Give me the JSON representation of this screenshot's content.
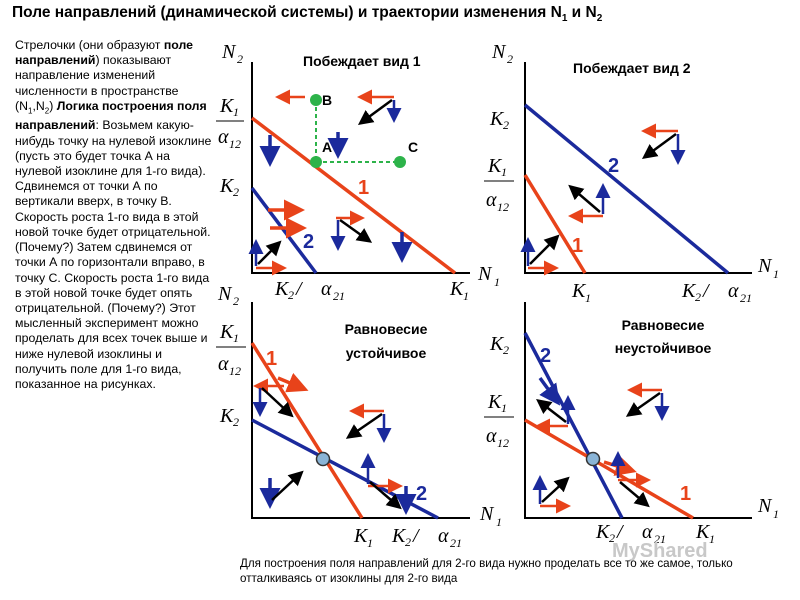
{
  "title": {
    "main": "Поле направлений (динамической системы) и траектории изменения N",
    "sub1": "1",
    "and": " и N",
    "sub2": "2"
  },
  "side": {
    "p1": "Стрелочки (они образуют",
    "p2": "поле направлений",
    "p3": ") показывают направление изменений численности в пространстве (N",
    "p4": "1",
    "p5": ",N",
    "p6": "2",
    "p7": ")",
    "p8": "Логика построения поля направлений",
    "p9": ": Возьмем какую-нибудь точку на нулевой изоклине (пусть это будет точка А на нулевой изоклине для 1-го вида). Сдвинемся от точки А по вертикали вверх, в точку В. Скорость роста 1-го вида в этой новой точке будет отрицательной. (Почему?) Затем сдвинемся от точки А по горизонтали вправо, в точку С. Скорость роста 1-го вида в этой новой точке будет опять отрицательной. (Почему?) Этот мысленный эксперимент можно проделать для всех точек выше и ниже нулевой изоклины и получить поле для 1-го вида, показанное на рисунках."
  },
  "panels": {
    "tl": {
      "title": "Побеждает вид 1"
    },
    "tr": {
      "title": "Побеждает вид 2"
    },
    "bl": {
      "title1": "Равновесие",
      "title2": "устойчивое"
    },
    "br": {
      "title1": "Равновесие",
      "title2": "неустойчивое"
    }
  },
  "labels": {
    "N": "N",
    "n1": "1",
    "n2": "2",
    "K": "K",
    "k1": "1",
    "k2": "2",
    "alpha": "α",
    "a12": "12",
    "a21": "21",
    "slash": " / ",
    "one": "1",
    "two": "2",
    "A": "А",
    "B": "В",
    "C": "С"
  },
  "footer": "Для построения поля направлений для 2-го вида нужно проделать все то же самое, только отталкиваясь от изоклины для 2-го вида",
  "watermark": "MyShared",
  "colors": {
    "red": "#e8431a",
    "blue": "#1b2a9c",
    "green": "#2db34a",
    "black": "#000000",
    "node": "#8ab4d6"
  }
}
